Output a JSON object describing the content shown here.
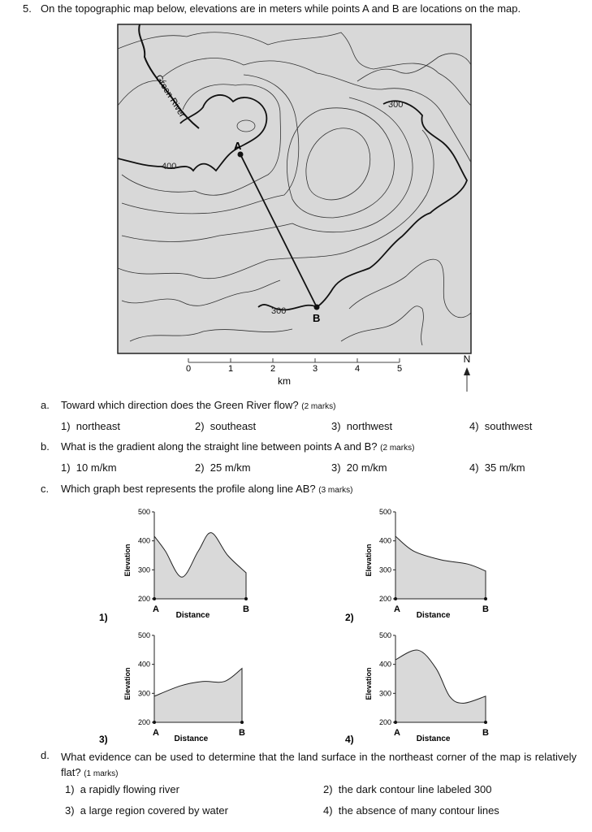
{
  "question": {
    "number": "5.",
    "text": "On the topographic map below, elevations are in meters while points A and B are locations on the map."
  },
  "map": {
    "river_label": "Green River",
    "contour_labels": [
      "300",
      "400",
      "300"
    ],
    "points": [
      "A",
      "B"
    ],
    "scale_ticks": [
      "0",
      "1",
      "2",
      "3",
      "4",
      "5"
    ],
    "scale_unit": "km",
    "north": "N"
  },
  "parts": [
    {
      "letter": "a.",
      "question": "Toward which direction does the Green River flow?",
      "marks": "(2 marks)",
      "options": [
        {
          "number": "1)",
          "text": "northeast"
        },
        {
          "number": "2)",
          "text": "southeast"
        },
        {
          "number": "3)",
          "text": "northwest"
        },
        {
          "number": "4)",
          "text": "southwest"
        }
      ]
    },
    {
      "letter": "b.",
      "question": "What is the gradient along the straight line between points A and B?",
      "marks": "(2 marks)",
      "options": [
        {
          "number": "1)",
          "text": "10 m/km"
        },
        {
          "number": "2)",
          "text": "25 m/km"
        },
        {
          "number": "3)",
          "text": "20 m/km"
        },
        {
          "number": "4)",
          "text": "35 m/km"
        }
      ]
    },
    {
      "letter": "c.",
      "question": "Which graph best represents the profile along line AB?",
      "marks": "(3 marks)",
      "options": [
        {
          "number": "1)",
          "graph": {
            "yticks": [
              "500",
              "400",
              "300",
              "200"
            ],
            "ylabel": "Elevation",
            "xlabel": "Distance",
            "start": "A",
            "end": "B"
          }
        },
        {
          "number": "2)",
          "graph": {
            "yticks": [
              "500",
              "400",
              "300",
              "200"
            ],
            "ylabel": "Elevation",
            "xlabel": "Distance",
            "start": "A",
            "end": "B"
          }
        },
        {
          "number": "3)",
          "graph": {
            "yticks": [
              "500",
              "400",
              "300",
              "200"
            ],
            "ylabel": "Elevation",
            "xlabel": "Distance",
            "start": "A",
            "end": "B"
          }
        },
        {
          "number": "4)",
          "graph": {
            "yticks": [
              "500",
              "400",
              "300",
              "200"
            ],
            "ylabel": "Elevation",
            "xlabel": "Distance",
            "start": "A",
            "end": "B"
          }
        }
      ]
    },
    {
      "letter": "d.",
      "question": "What evidence can be used to determine that the land surface in the northeast corner of the map is relatively flat?",
      "marks": "(1 marks)",
      "options": [
        {
          "number": "1)",
          "text": "a rapidly flowing river"
        },
        {
          "number": "2)",
          "text": "the dark contour line labeled 300"
        },
        {
          "number": "3)",
          "text": "a large region covered by water"
        },
        {
          "number": "4)",
          "text": "the absence of many contour lines"
        }
      ]
    }
  ]
}
